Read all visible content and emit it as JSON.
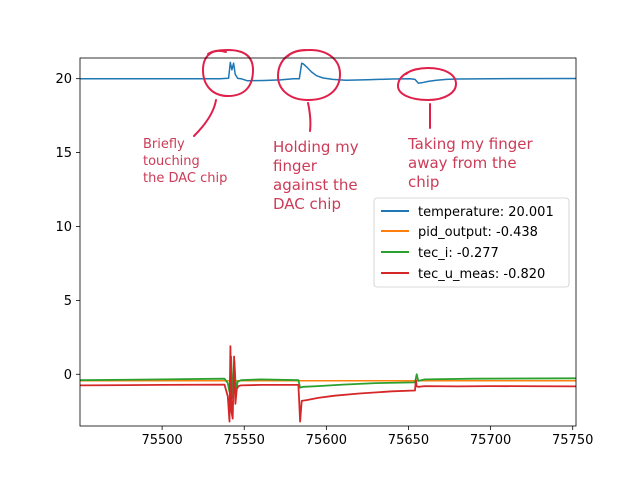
{
  "chart_data": {
    "type": "line",
    "title": "",
    "xlabel": "",
    "ylabel": "",
    "xlim": [
      75450,
      75752
    ],
    "ylim": [
      -3.5,
      21.4
    ],
    "x_ticks": [
      75500,
      75550,
      75600,
      75650,
      75700,
      75750
    ],
    "y_ticks": [
      0,
      5,
      10,
      15,
      20
    ],
    "grid": false,
    "legend_position": "center-right",
    "series": [
      {
        "name": "temperature: 20.001",
        "color": "#1f77b4",
        "x": [
          75450,
          75500,
          75535,
          75540.5,
          75541.5,
          75542.5,
          75543.5,
          75544.5,
          75546,
          75548,
          75552,
          75562,
          75572,
          75580,
          75583.5,
          75585,
          75586,
          75588,
          75591,
          75594,
          75598,
          75604,
          75612,
          75625,
          75640,
          75651,
          75654,
          75656,
          75658,
          75662,
          75667,
          75673,
          75680,
          75700,
          75752
        ],
        "y": [
          19.99,
          20.0,
          20.0,
          20.03,
          21.1,
          20.6,
          21.05,
          20.3,
          20.02,
          20.0,
          19.86,
          19.88,
          19.92,
          20.0,
          20.0,
          21.05,
          21.0,
          20.8,
          20.45,
          20.2,
          20.05,
          19.95,
          19.9,
          19.93,
          19.98,
          20.0,
          19.95,
          19.7,
          19.72,
          19.82,
          19.9,
          19.95,
          19.98,
          20.0,
          20.01
        ]
      },
      {
        "name": "pid_output: -0.438",
        "color": "#ff7f0e",
        "x": [
          75450,
          75752
        ],
        "y": [
          -0.44,
          -0.44
        ]
      },
      {
        "name": "tec_i: -0.277",
        "color": "#2ca02c",
        "x": [
          75450,
          75500,
          75538,
          75540,
          75541,
          75542,
          75543,
          75544,
          75545,
          75546,
          75548,
          75560,
          75583,
          75584,
          75586,
          75595,
          75610,
          75630,
          75654,
          75655,
          75656,
          75660,
          75690,
          75752
        ],
        "y": [
          -0.4,
          -0.35,
          -0.3,
          -0.6,
          -1.2,
          1.2,
          -1.6,
          0.9,
          -1.1,
          -0.5,
          -0.4,
          -0.35,
          -0.4,
          -0.9,
          -0.85,
          -0.8,
          -0.7,
          -0.6,
          -0.55,
          0.0,
          -0.45,
          -0.35,
          -0.3,
          -0.27
        ]
      },
      {
        "name": "tec_u_meas: -0.820",
        "color": "#d62728",
        "x": [
          75450,
          75500,
          75538,
          75540,
          75541,
          75541.6,
          75542.2,
          75543,
          75543.8,
          75544.6,
          75545.5,
          75546.5,
          75548,
          75560,
          75583,
          75583.5,
          75584,
          75585,
          75588,
          75595,
          75605,
          75620,
          75640,
          75654,
          75654.5,
          75655,
          75656,
          75660,
          75680,
          75700,
          75752
        ],
        "y": [
          -0.75,
          -0.72,
          -0.7,
          -1.5,
          -3.2,
          1.9,
          -2.5,
          -3.0,
          1.2,
          -2.0,
          -1.0,
          -0.8,
          -0.75,
          -0.72,
          -0.72,
          -2.0,
          -3.2,
          -1.8,
          -1.75,
          -1.6,
          -1.45,
          -1.3,
          -1.15,
          -1.1,
          -0.4,
          -0.82,
          -0.85,
          -0.8,
          -0.82,
          -0.8,
          -0.82
        ]
      }
    ],
    "annotations": [
      {
        "lines": [
          "Briefly",
          "touching",
          "the DAC chip"
        ]
      },
      {
        "lines": [
          "Holding my",
          "finger",
          "against the",
          "DAC chip"
        ]
      },
      {
        "lines": [
          "Taking my finger",
          "away from the",
          "chip"
        ]
      }
    ]
  }
}
